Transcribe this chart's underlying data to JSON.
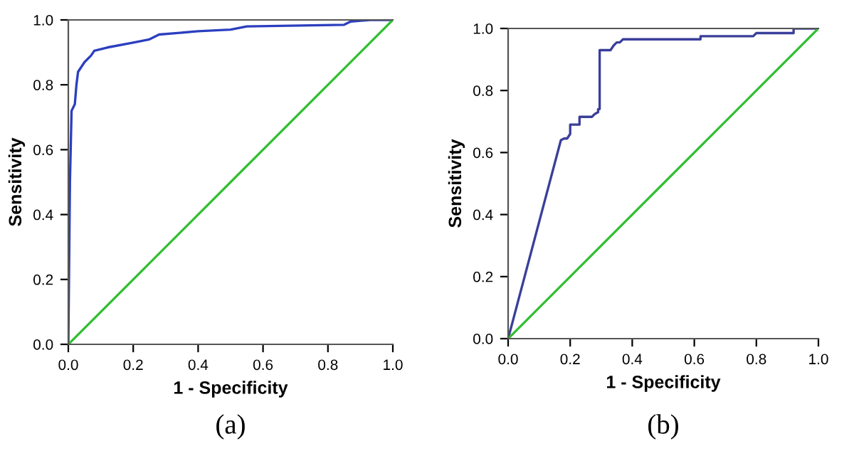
{
  "chart_data": [
    {
      "type": "line",
      "xlabel": "1 - Specificity",
      "ylabel": "Sensitivity",
      "annotations": [
        "(a)"
      ],
      "xlim": [
        0,
        1
      ],
      "ylim": [
        0,
        1
      ],
      "xticks": [
        {
          "value": 0,
          "label": "0.0"
        },
        {
          "value": 0.2,
          "label": "0.2"
        },
        {
          "value": 0.4,
          "label": "0.4"
        },
        {
          "value": 0.6,
          "label": "0.6"
        },
        {
          "value": 0.8,
          "label": "0.8"
        },
        {
          "value": 1,
          "label": "1.0"
        }
      ],
      "yticks": [
        {
          "value": 0,
          "label": "0.0"
        },
        {
          "value": 0.2,
          "label": "0.2"
        },
        {
          "value": 0.4,
          "label": "0.4"
        },
        {
          "value": 0.6,
          "label": "0.6"
        },
        {
          "value": 0.8,
          "label": "0.8"
        },
        {
          "value": 1,
          "label": "1.0"
        }
      ],
      "grid": false,
      "marker": "none",
      "line_style": "solid",
      "series": [
        {
          "color": "#2b3fbf",
          "x": [
            0,
            0.005,
            0.01,
            0.02,
            0.025,
            0.03,
            0.05,
            0.07,
            0.08,
            0.12,
            0.2,
            0.25,
            0.28,
            0.4,
            0.5,
            0.55,
            0.85,
            0.87,
            0.93,
            1
          ],
          "values": [
            0,
            0.5,
            0.72,
            0.74,
            0.8,
            0.84,
            0.87,
            0.89,
            0.905,
            0.915,
            0.93,
            0.94,
            0.955,
            0.965,
            0.97,
            0.98,
            0.985,
            0.995,
            1,
            1
          ]
        },
        {
          "color": "#2fbf2f",
          "x": [
            0,
            1
          ],
          "values": [
            0,
            1
          ]
        }
      ]
    },
    {
      "type": "line",
      "xlabel": "1 - Specificity",
      "ylabel": "Sensitivity",
      "annotations": [
        "(b)"
      ],
      "xlim": [
        0,
        1
      ],
      "ylim": [
        0,
        1
      ],
      "xticks": [
        {
          "value": 0,
          "label": "0.0"
        },
        {
          "value": 0.2,
          "label": "0.2"
        },
        {
          "value": 0.4,
          "label": "0.4"
        },
        {
          "value": 0.6,
          "label": "0.6"
        },
        {
          "value": 0.8,
          "label": "0.8"
        },
        {
          "value": 1,
          "label": "1.0"
        }
      ],
      "yticks": [
        {
          "value": 0,
          "label": "0.0"
        },
        {
          "value": 0.2,
          "label": "0.2"
        },
        {
          "value": 0.4,
          "label": "0.4"
        },
        {
          "value": 0.6,
          "label": "0.6"
        },
        {
          "value": 0.8,
          "label": "0.8"
        },
        {
          "value": 1,
          "label": "1.0"
        }
      ],
      "grid": false,
      "marker": "none",
      "line_style": "solid",
      "series": [
        {
          "color": "#3a3f9a",
          "x": [
            0,
            0.17,
            0.18,
            0.19,
            0.2,
            0.2,
            0.23,
            0.23,
            0.27,
            0.28,
            0.29,
            0.29,
            0.295,
            0.295,
            0.33,
            0.34,
            0.35,
            0.36,
            0.37,
            0.62,
            0.62,
            0.79,
            0.8,
            0.92,
            0.92,
            1
          ],
          "values": [
            0,
            0.64,
            0.645,
            0.645,
            0.66,
            0.69,
            0.69,
            0.715,
            0.715,
            0.725,
            0.73,
            0.74,
            0.74,
            0.93,
            0.93,
            0.945,
            0.955,
            0.955,
            0.965,
            0.965,
            0.975,
            0.975,
            0.985,
            0.985,
            1,
            1
          ]
        },
        {
          "color": "#2fbf2f",
          "x": [
            0,
            1
          ],
          "values": [
            0,
            1
          ]
        }
      ]
    }
  ]
}
